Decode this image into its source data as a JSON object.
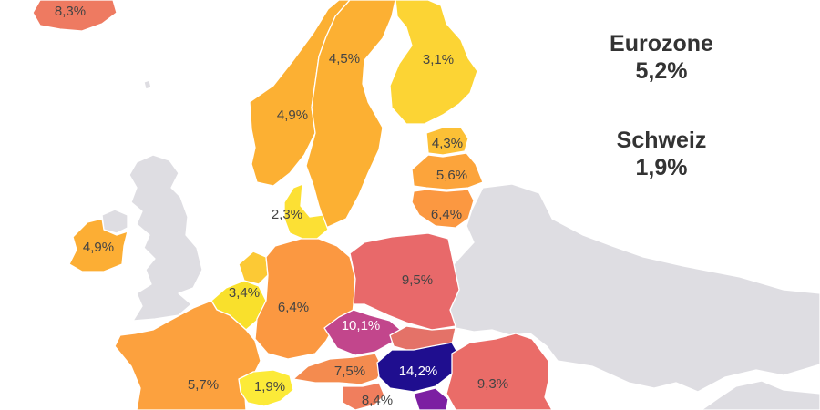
{
  "summary": {
    "eurozone_label": "Eurozone",
    "eurozone_value": "5,2%",
    "switzerland_label": "Schweiz",
    "switzerland_value": "1,9%"
  },
  "colors": {
    "background": "#ffffff",
    "non_member": "#dedde2",
    "border": "#ffffff",
    "text_dark": "#444444",
    "text_light": "#ffffff",
    "summary_text": "#333333"
  },
  "countries": [
    {
      "id": "iceland",
      "label": "8,3%",
      "color": "#ee7a61",
      "text": "dark"
    },
    {
      "id": "norway",
      "label": "4,9%",
      "color": "#fcb033",
      "text": "dark"
    },
    {
      "id": "sweden",
      "label": "4,5%",
      "color": "#fcb033",
      "text": "dark"
    },
    {
      "id": "finland",
      "label": "3,1%",
      "color": "#fcd434",
      "text": "dark"
    },
    {
      "id": "estonia",
      "label": "4,3%",
      "color": "#fcc036",
      "text": "dark"
    },
    {
      "id": "latvia",
      "label": "5,6%",
      "color": "#fca43b",
      "text": "dark"
    },
    {
      "id": "lithuania",
      "label": "6,4%",
      "color": "#fb9841",
      "text": "dark"
    },
    {
      "id": "denmark",
      "label": "2,3%",
      "color": "#fce034",
      "text": "dark"
    },
    {
      "id": "ireland",
      "label": "4,9%",
      "color": "#fcae34",
      "text": "dark"
    },
    {
      "id": "netherlands",
      "label": "",
      "color": "#fcc935",
      "text": "dark"
    },
    {
      "id": "belgium",
      "label": "3,4%",
      "color": "#f9e02c",
      "text": "dark"
    },
    {
      "id": "germany",
      "label": "6,4%",
      "color": "#fb9841",
      "text": "dark"
    },
    {
      "id": "poland",
      "label": "9,5%",
      "color": "#e8696a",
      "text": "dark"
    },
    {
      "id": "czechia",
      "label": "10,1%",
      "color": "#c2468c",
      "text": "light"
    },
    {
      "id": "france",
      "label": "5,7%",
      "color": "#fca13e",
      "text": "dark"
    },
    {
      "id": "switzerland",
      "label": "1,9%",
      "color": "#fcea38",
      "text": "dark"
    },
    {
      "id": "austria",
      "label": "7,5%",
      "color": "#f48b4f",
      "text": "dark"
    },
    {
      "id": "slovakia",
      "label": "",
      "color": "#e47268",
      "text": "dark"
    },
    {
      "id": "hungary",
      "label": "14,2%",
      "color": "#1f0e8f",
      "text": "light"
    },
    {
      "id": "romania",
      "label": "9,3%",
      "color": "#ea6c68",
      "text": "dark"
    },
    {
      "id": "slovenia",
      "label": "8,4%",
      "color": "#f07e5d",
      "text": "dark"
    },
    {
      "id": "serbia",
      "label": "",
      "color": "#7c1fa2",
      "text": "light"
    }
  ]
}
